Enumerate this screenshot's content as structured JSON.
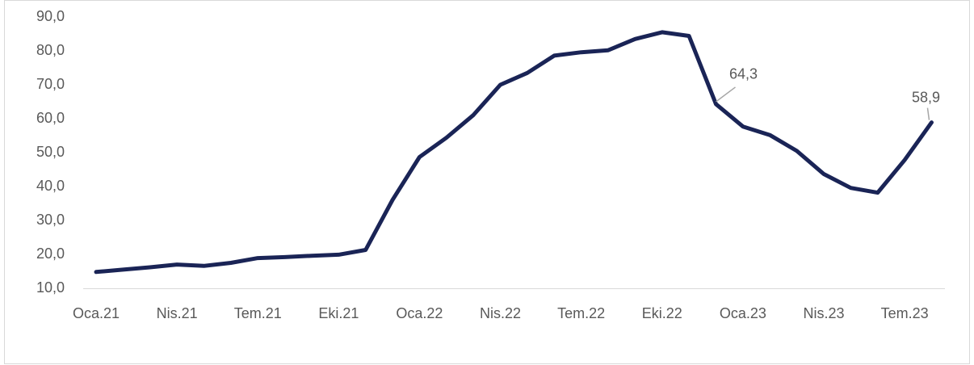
{
  "chart_data": {
    "type": "line",
    "categories": [
      "Oca.21",
      null,
      null,
      "Nis.21",
      null,
      null,
      "Tem.21",
      null,
      null,
      "Eki.21",
      null,
      null,
      "Oca.22",
      null,
      null,
      "Nis.22",
      null,
      null,
      "Tem.22",
      null,
      null,
      "Eki.22",
      null,
      null,
      "Oca.23",
      null,
      null,
      "Nis.23",
      null,
      null,
      "Tem.23",
      null
    ],
    "series": [
      {
        "color": "#1a2456",
        "values": [
          14.8,
          15.5,
          16.2,
          17.0,
          16.6,
          17.5,
          18.9,
          19.2,
          19.6,
          19.9,
          21.3,
          36.1,
          48.7,
          54.4,
          61.1,
          70.0,
          73.5,
          78.6,
          79.6,
          80.2,
          83.5,
          85.5,
          84.4,
          64.3,
          57.7,
          55.2,
          50.5,
          43.7,
          39.6,
          38.2,
          47.8,
          58.9
        ],
        "value_labels": [
          null,
          null,
          null,
          null,
          null,
          null,
          null,
          null,
          null,
          null,
          null,
          null,
          null,
          null,
          null,
          null,
          null,
          null,
          null,
          null,
          null,
          null,
          null,
          "64,3",
          null,
          null,
          null,
          null,
          null,
          null,
          null,
          "58,9"
        ]
      }
    ],
    "ylim": [
      10,
      90
    ],
    "yticks": [
      {
        "value": 10,
        "label": "10,0"
      },
      {
        "value": 20,
        "label": "20,0"
      },
      {
        "value": 30,
        "label": "30,0"
      },
      {
        "value": 40,
        "label": "40,0"
      },
      {
        "value": 50,
        "label": "50,0"
      },
      {
        "value": 60,
        "label": "60,0"
      },
      {
        "value": 70,
        "label": "70,0"
      },
      {
        "value": 80,
        "label": "80,0"
      },
      {
        "value": 90,
        "label": "90,0"
      }
    ]
  }
}
